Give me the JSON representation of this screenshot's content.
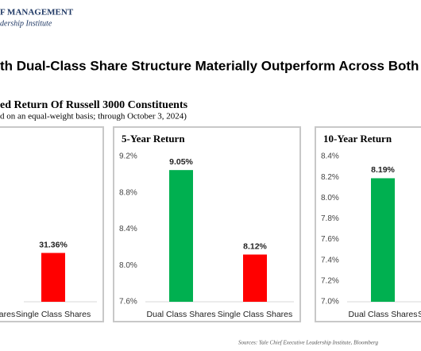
{
  "header": {
    "org": "F MANAGEMENT",
    "unit": "dership Institute"
  },
  "title": "th Dual-Class Share Structure Materially Outperform Across Both Sh",
  "subtitle": "ed Return Of Russell 3000 Constituents",
  "note": "d on an equal-weight basis; through October 3, 2024)",
  "source": "Sources: Yale Chief Executive Leadership Institute, Bloomberg",
  "chart_data": [
    {
      "type": "bar",
      "categories": [
        "ares",
        "Single Class Shares"
      ],
      "values": [
        null,
        31.36
      ],
      "value_labels": [
        null,
        "31.36%"
      ],
      "colors": [
        "#00b050",
        "#ff0000"
      ],
      "ylim": [
        28,
        38
      ]
    },
    {
      "type": "bar",
      "title": "5-Year Return",
      "categories": [
        "Dual Class Shares",
        "Single Class Shares"
      ],
      "values": [
        9.05,
        8.12
      ],
      "value_labels": [
        "9.05%",
        "8.12%"
      ],
      "colors": [
        "#00b050",
        "#ff0000"
      ],
      "ylim": [
        7.6,
        9.2
      ],
      "yticks": [
        {
          "value": 7.6,
          "label": "7.6%"
        },
        {
          "value": 8.0,
          "label": "8.0%"
        },
        {
          "value": 8.4,
          "label": "8.4%"
        },
        {
          "value": 8.8,
          "label": "8.8%"
        },
        {
          "value": 9.2,
          "label": "9.2%"
        }
      ]
    },
    {
      "type": "bar",
      "title": "10-Year Return",
      "categories": [
        "Dual Class Shares",
        "S"
      ],
      "values": [
        8.19,
        null
      ],
      "value_labels": [
        "8.19%",
        null
      ],
      "colors": [
        "#00b050",
        "#ff0000"
      ],
      "ylim": [
        7.0,
        8.4
      ],
      "yticks": [
        {
          "value": 7.0,
          "label": "7.0%"
        },
        {
          "value": 7.2,
          "label": "7.2%"
        },
        {
          "value": 7.4,
          "label": "7.4%"
        },
        {
          "value": 7.6,
          "label": "7.6%"
        },
        {
          "value": 7.8,
          "label": "7.8%"
        },
        {
          "value": 8.0,
          "label": "8.0%"
        },
        {
          "value": 8.2,
          "label": "8.2%"
        },
        {
          "value": 8.4,
          "label": "8.4%"
        }
      ]
    }
  ]
}
